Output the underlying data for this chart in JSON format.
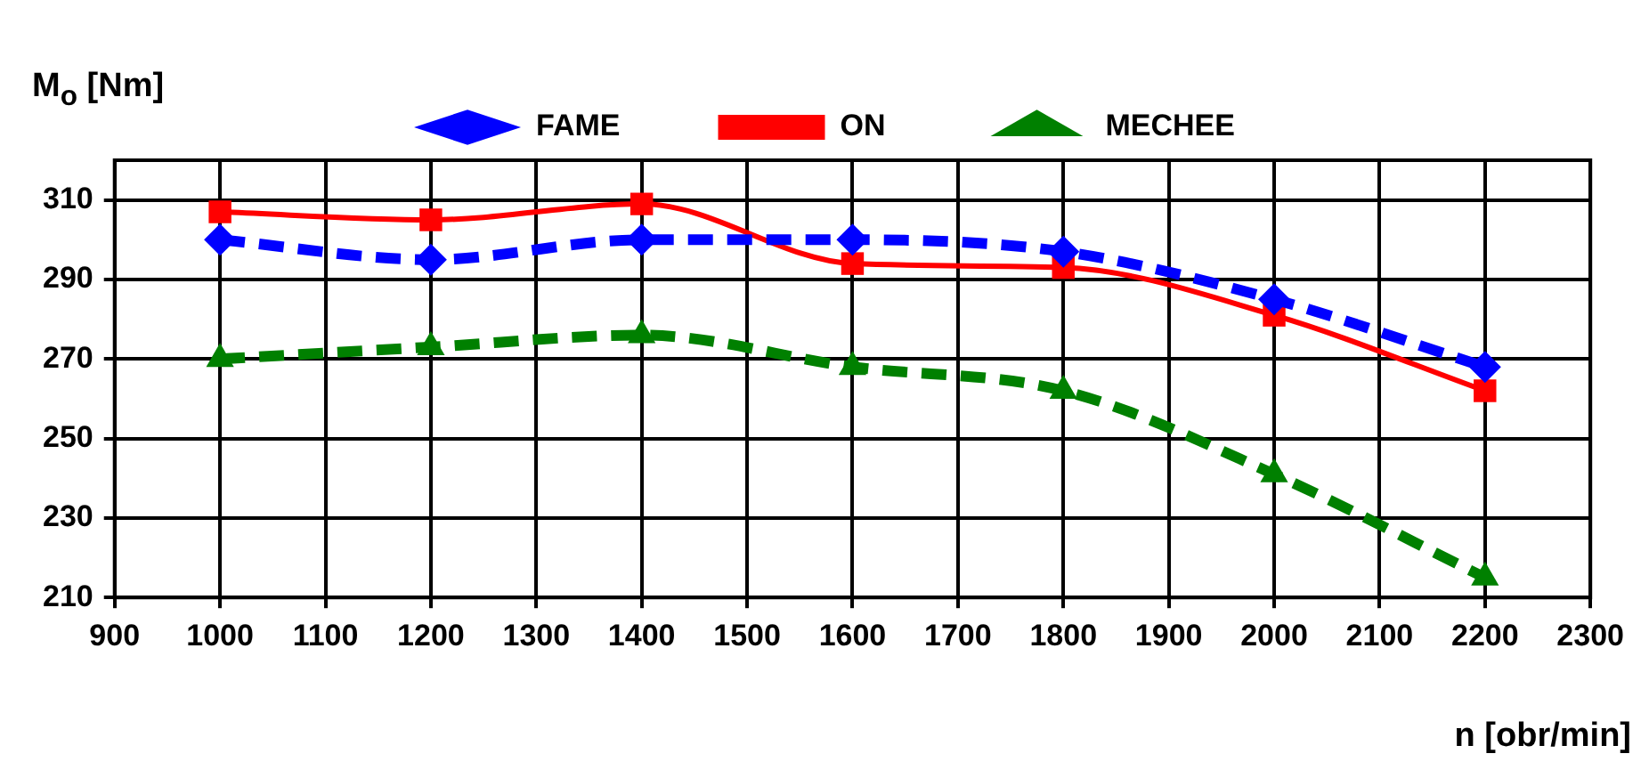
{
  "chart_data": {
    "type": "line",
    "xlabel": "n [obr/min]",
    "ylabel": "M$_{o}$ [Nm]",
    "x": [
      1000,
      1200,
      1400,
      1600,
      1800,
      2000,
      2200
    ],
    "series": [
      {
        "name": "FAME",
        "color": "#0000ff",
        "values": [
          300,
          295,
          300,
          300,
          297,
          285,
          268
        ],
        "marker": "diamond",
        "line_style": "dashed"
      },
      {
        "name": "ON",
        "color": "#ff0000",
        "values": [
          307,
          305,
          309,
          294,
          293,
          281,
          262
        ],
        "marker": "square",
        "line_style": "solid"
      },
      {
        "name": "MECHEE",
        "color": "#008000",
        "values": [
          270,
          273,
          276,
          268,
          262,
          241,
          215
        ],
        "marker": "triangle",
        "line_style": "dashed"
      }
    ],
    "xlim": [
      900,
      2300
    ],
    "xticks": [
      900,
      1000,
      1100,
      1200,
      1300,
      1400,
      1500,
      1600,
      1700,
      1800,
      1900,
      2000,
      2100,
      2200,
      2300
    ],
    "ylim": [
      210,
      320
    ],
    "yticks": [
      210,
      230,
      250,
      270,
      290,
      310
    ],
    "grid": true,
    "legend": "top"
  }
}
